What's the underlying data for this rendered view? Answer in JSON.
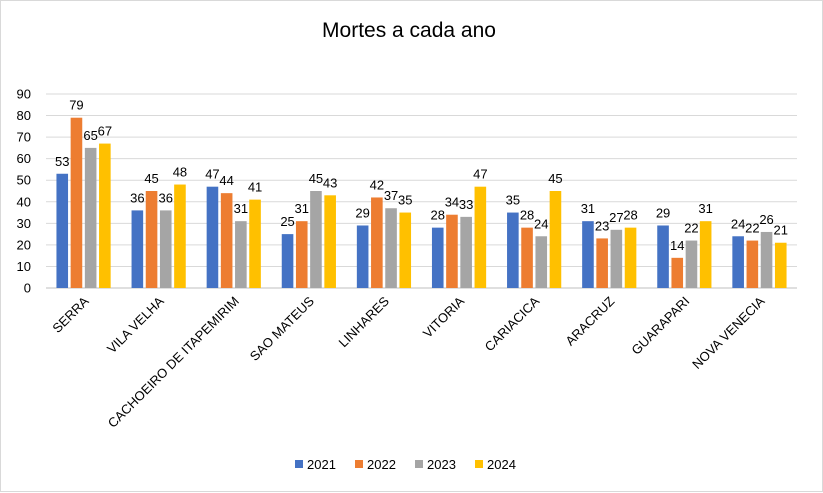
{
  "chart_data": {
    "type": "bar",
    "title": "Mortes a cada ano",
    "categories": [
      "SERRA",
      "VILA VELHA",
      "CACHOEIRO DE ITAPEMIRIM",
      "SAO MATEUS",
      "LINHARES",
      "VITORIA",
      "CARIACICA",
      "ARACRUZ",
      "GUARAPARI",
      "NOVA VENECIA"
    ],
    "series": [
      {
        "name": "2021",
        "color": "#4472c4",
        "values": [
          53,
          36,
          47,
          25,
          29,
          28,
          35,
          31,
          29,
          24
        ]
      },
      {
        "name": "2022",
        "color": "#ed7d31",
        "values": [
          79,
          45,
          44,
          31,
          42,
          34,
          28,
          23,
          14,
          22
        ]
      },
      {
        "name": "2023",
        "color": "#a5a5a5",
        "values": [
          65,
          36,
          31,
          45,
          37,
          33,
          24,
          27,
          22,
          26
        ]
      },
      {
        "name": "2024",
        "color": "#ffc000",
        "values": [
          67,
          48,
          41,
          43,
          35,
          47,
          45,
          28,
          31,
          21
        ]
      }
    ],
    "xlabel": "",
    "ylabel": "",
    "ylim": [
      0,
      90
    ],
    "yticks": [
      0,
      10,
      20,
      30,
      40,
      50,
      60,
      70,
      80,
      90
    ],
    "grid": true,
    "data_labels": true,
    "legend_position": "bottom"
  }
}
